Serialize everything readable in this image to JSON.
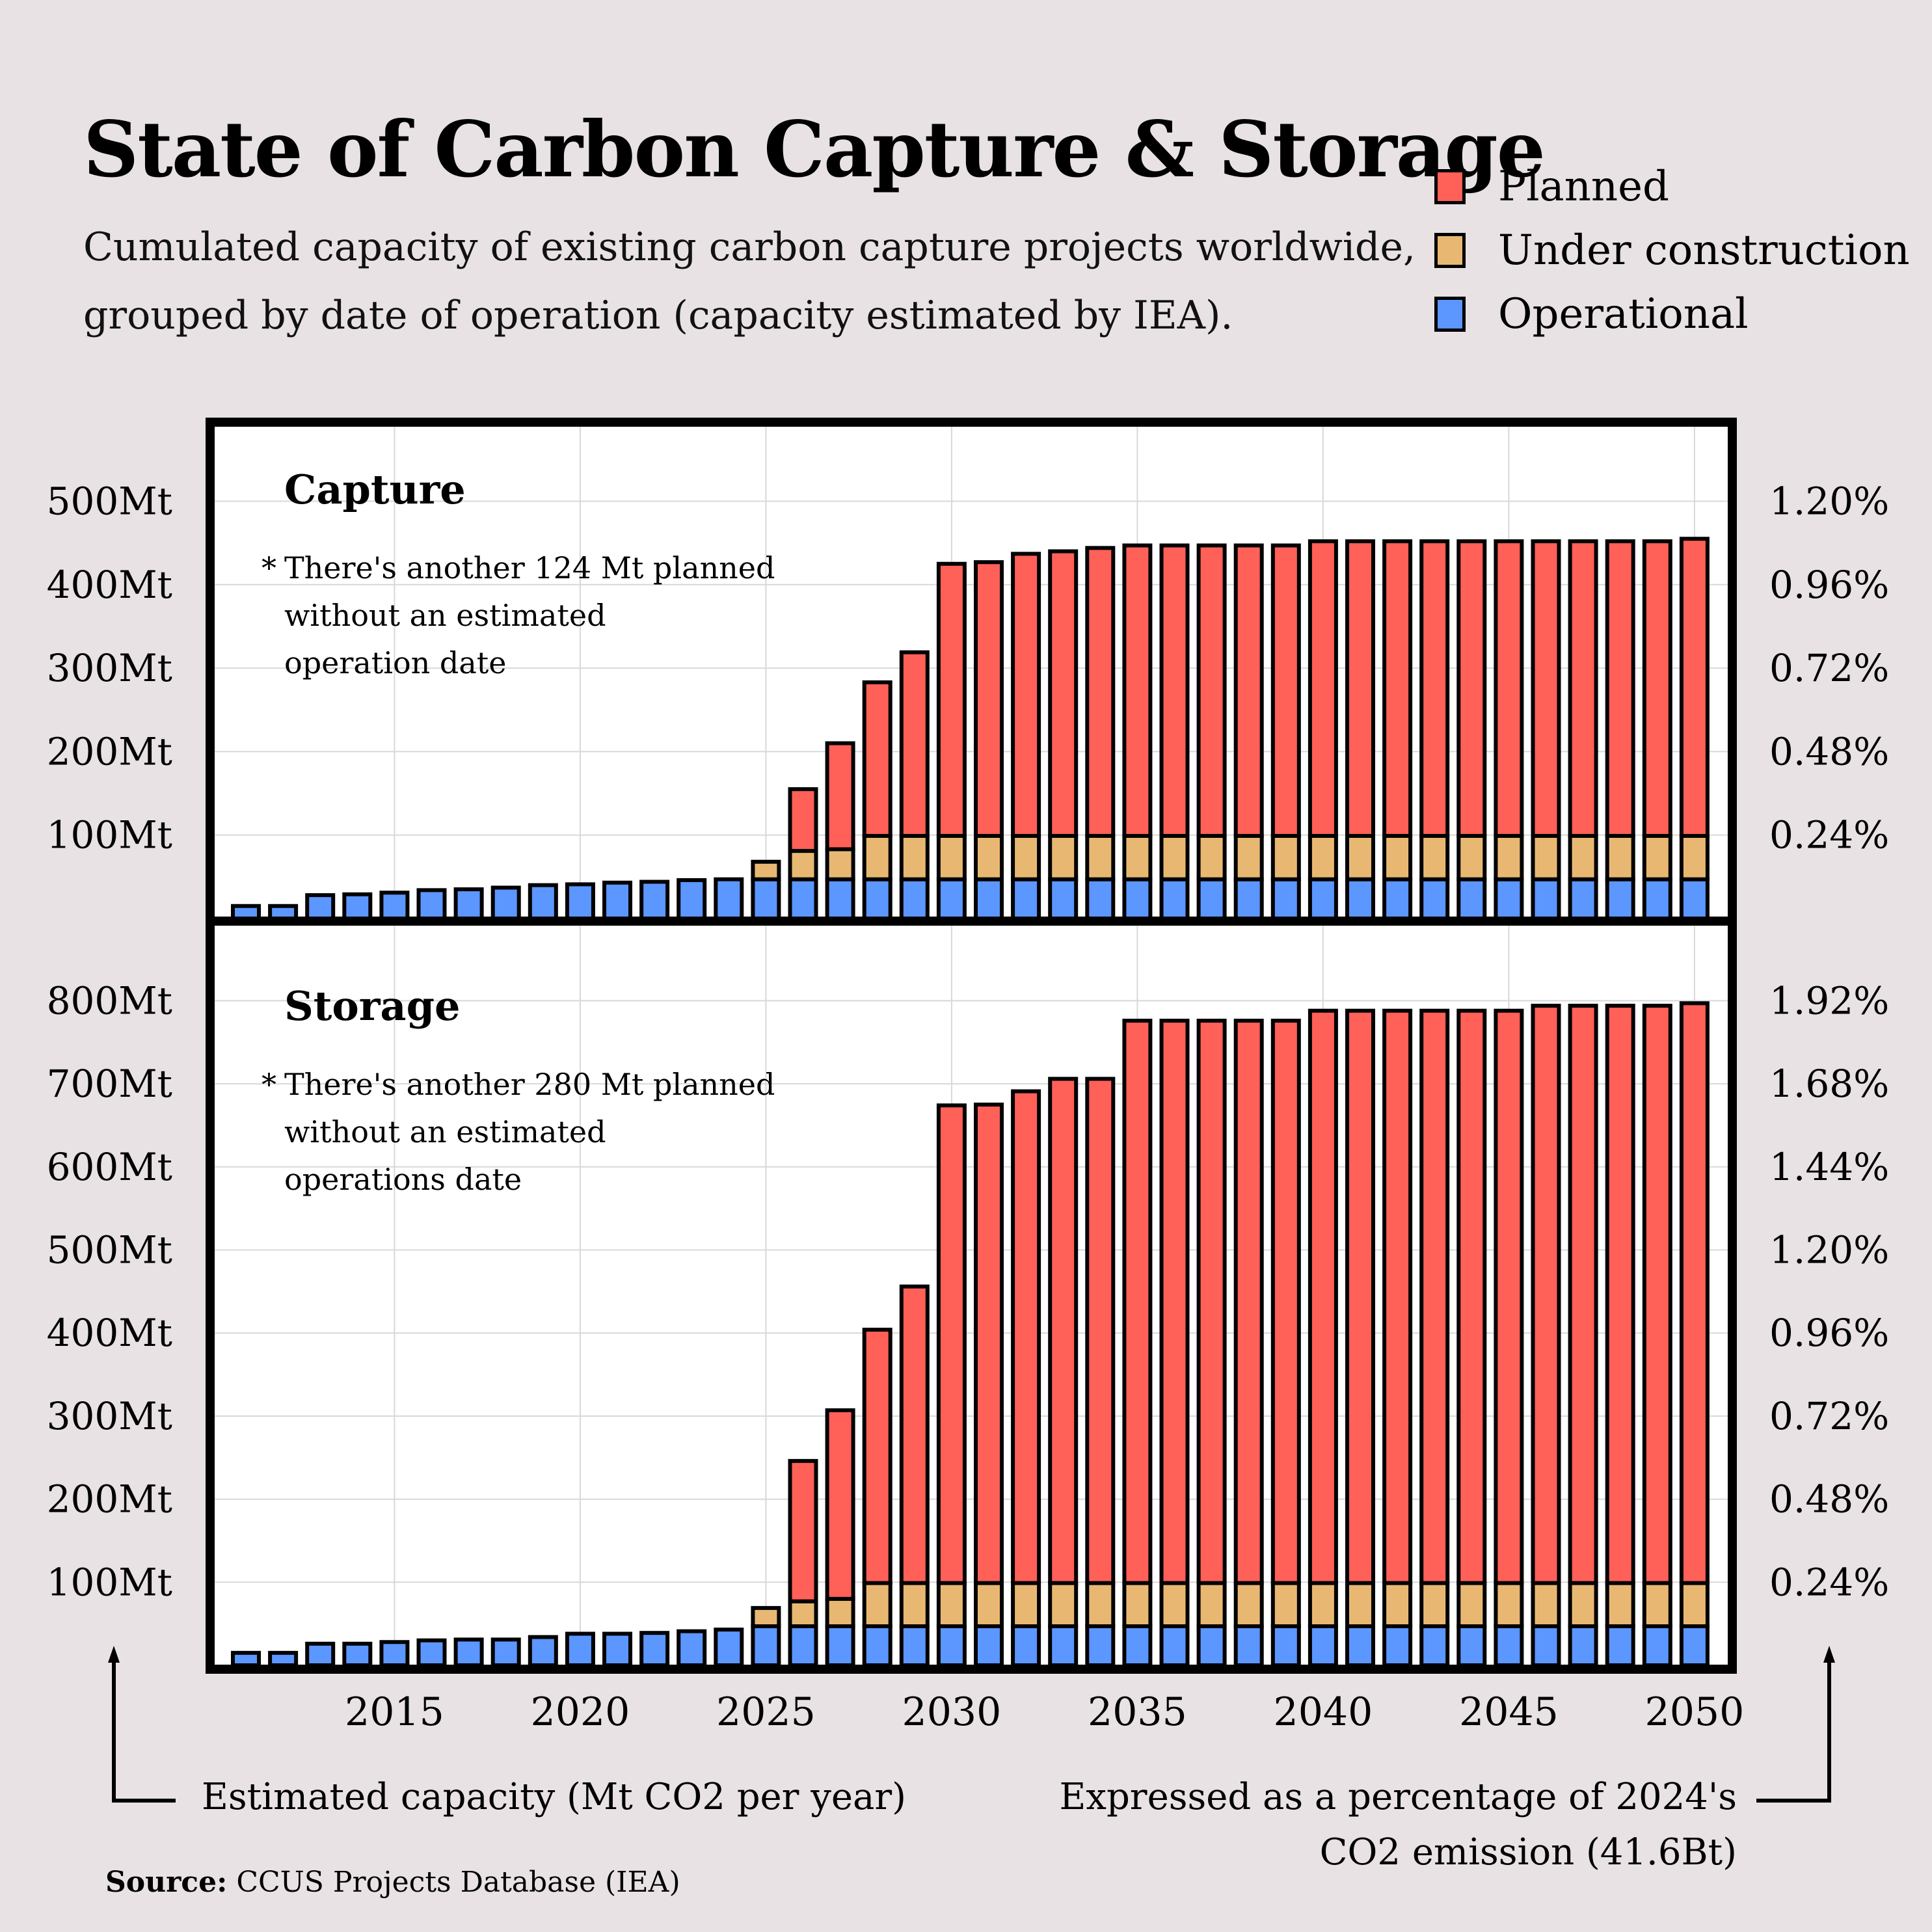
{
  "title": "State of Carbon Capture & Storage",
  "subtitle_lines": [
    "Cumulated capacity of existing carbon capture projects worldwide,",
    "grouped by date of operation (capacity estimated by IEA)."
  ],
  "legend": [
    {
      "label": "Planned",
      "color": "#FF6057"
    },
    {
      "label": "Under construction",
      "color": "#E8B873"
    },
    {
      "label": "Operational",
      "color": "#5C96FF"
    }
  ],
  "footer": {
    "left_axis_note": "Estimated capacity (Mt CO2 per year)",
    "right_axis_note_lines": [
      "Expressed as a percentage of 2024's",
      "CO2 emission (41.6Bt)"
    ],
    "source_label": "Source:",
    "source_value": "CCUS Projects Database (IEA)"
  },
  "chart_data": [
    {
      "type": "bar",
      "stacked": true,
      "title": "Capture",
      "annotation_lines": [
        "There's another 124 Mt planned",
        "without an estimated",
        "operation date"
      ],
      "annotation_marker": "*",
      "xlabel": "",
      "ylabel": "Estimated capacity (Mt CO2 per year)",
      "ylim": [
        0,
        560
      ],
      "y_ticks": [
        100,
        200,
        300,
        400,
        500
      ],
      "y_tick_labels": [
        "100Mt",
        "200Mt",
        "300Mt",
        "400Mt",
        "500Mt"
      ],
      "y2_tick_labels": [
        "0.24%",
        "0.48%",
        "0.72%",
        "0.96%",
        "1.20%"
      ],
      "grid": true,
      "categories": [
        2011,
        2012,
        2013,
        2014,
        2015,
        2016,
        2017,
        2018,
        2019,
        2020,
        2021,
        2022,
        2023,
        2024,
        2025,
        2026,
        2027,
        2028,
        2029,
        2030,
        2031,
        2032,
        2033,
        2034,
        2035,
        2036,
        2037,
        2038,
        2039,
        2040,
        2041,
        2042,
        2043,
        2044,
        2045,
        2046,
        2047,
        2048,
        2049,
        2050
      ],
      "series": [
        {
          "name": "Operational",
          "values": [
            15,
            15,
            28,
            29,
            31,
            34,
            35,
            37,
            40,
            41,
            43,
            44,
            46,
            47,
            47,
            47,
            47,
            47,
            47,
            47,
            47,
            47,
            47,
            47,
            47,
            47,
            47,
            47,
            47,
            47,
            47,
            47,
            47,
            47,
            47,
            47,
            47,
            47,
            47,
            47
          ]
        },
        {
          "name": "Under construction",
          "values": [
            0,
            0,
            0,
            0,
            0,
            0,
            0,
            0,
            0,
            0,
            0,
            0,
            0,
            0,
            21,
            34,
            36,
            52,
            52,
            52,
            52,
            52,
            52,
            52,
            52,
            52,
            52,
            52,
            52,
            52,
            52,
            52,
            52,
            52,
            52,
            52,
            52,
            52,
            52,
            52
          ]
        },
        {
          "name": "Planned",
          "values": [
            0,
            0,
            0,
            0,
            0,
            0,
            0,
            0,
            0,
            0,
            0,
            0,
            0,
            0,
            0,
            74,
            127,
            184,
            220,
            326,
            328,
            338,
            341,
            345,
            348,
            348,
            348,
            348,
            348,
            353,
            353,
            353,
            353,
            353,
            353,
            353,
            353,
            353,
            353,
            356
          ]
        }
      ]
    },
    {
      "type": "bar",
      "stacked": true,
      "title": "Storage",
      "annotation_lines": [
        "There's another 280 Mt planned",
        "without an estimated",
        "operations date"
      ],
      "annotation_marker": "*",
      "xlabel": "",
      "ylabel": "Estimated capacity (Mt CO2 per year)",
      "ylim": [
        0,
        870
      ],
      "y_ticks": [
        100,
        200,
        300,
        400,
        500,
        600,
        700,
        800
      ],
      "y_tick_labels": [
        "100Mt",
        "200Mt",
        "300Mt",
        "400Mt",
        "500Mt",
        "600Mt",
        "700Mt",
        "800Mt"
      ],
      "y2_tick_labels": [
        "0.24%",
        "0.48%",
        "0.72%",
        "0.96%",
        "1.20%",
        "1.44%",
        "1.68%",
        "1.92%"
      ],
      "grid": true,
      "x_tick_labels": [
        "2015",
        "2020",
        "2025",
        "2030",
        "2035",
        "2040",
        "2045",
        "2050"
      ],
      "categories": [
        2011,
        2012,
        2013,
        2014,
        2015,
        2016,
        2017,
        2018,
        2019,
        2020,
        2021,
        2022,
        2023,
        2024,
        2025,
        2026,
        2027,
        2028,
        2029,
        2030,
        2031,
        2032,
        2033,
        2034,
        2035,
        2036,
        2037,
        2038,
        2039,
        2040,
        2041,
        2042,
        2043,
        2044,
        2045,
        2046,
        2047,
        2048,
        2049,
        2050
      ],
      "series": [
        {
          "name": "Operational",
          "values": [
            15,
            15,
            26,
            26,
            28,
            30,
            31,
            31,
            34,
            38,
            38,
            39,
            41,
            43,
            47,
            47,
            47,
            47,
            47,
            47,
            47,
            47,
            47,
            47,
            47,
            47,
            47,
            47,
            47,
            47,
            47,
            47,
            47,
            47,
            47,
            47,
            47,
            47,
            47,
            47
          ]
        },
        {
          "name": "Under construction",
          "values": [
            0,
            0,
            0,
            0,
            0,
            0,
            0,
            0,
            0,
            0,
            0,
            0,
            0,
            0,
            22,
            30,
            33,
            52,
            52,
            52,
            52,
            52,
            52,
            52,
            52,
            52,
            52,
            52,
            52,
            52,
            52,
            52,
            52,
            52,
            52,
            52,
            52,
            52,
            52,
            52
          ]
        },
        {
          "name": "Planned",
          "values": [
            0,
            0,
            0,
            0,
            0,
            0,
            0,
            0,
            0,
            0,
            0,
            0,
            0,
            0,
            0,
            169,
            227,
            305,
            357,
            575,
            576,
            592,
            607,
            607,
            677,
            677,
            677,
            677,
            677,
            689,
            689,
            689,
            689,
            689,
            689,
            695,
            695,
            695,
            695,
            698
          ]
        }
      ]
    }
  ]
}
